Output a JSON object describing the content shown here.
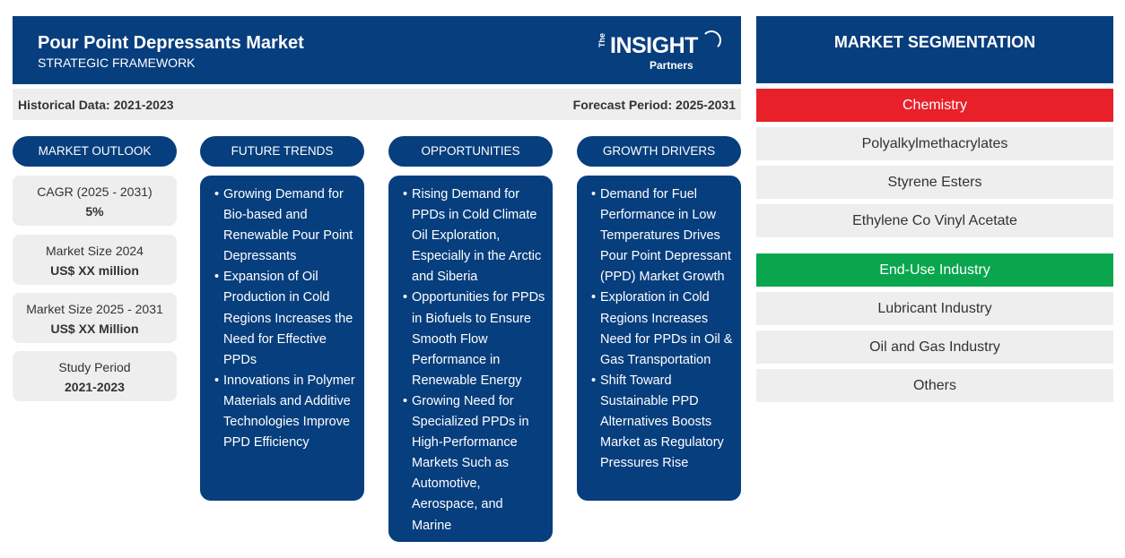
{
  "header": {
    "title": "Pour Point Depressants Market",
    "subtitle": "STRATEGIC FRAMEWORK",
    "logo": {
      "the": "The",
      "name": "INSIGHT",
      "partners": "Partners"
    }
  },
  "periods": {
    "historical": "Historical Data: 2021-2023",
    "forecast": "Forecast Period: 2025-2031"
  },
  "columns": {
    "outlook": "MARKET OUTLOOK",
    "trends": "FUTURE TRENDS",
    "opportunities": "OPPORTUNITIES",
    "drivers": "GROWTH DRIVERS"
  },
  "outlook": [
    {
      "label": "CAGR (2025 - 2031)",
      "value": "5%"
    },
    {
      "label": "Market Size 2024",
      "value": "US$ XX million"
    },
    {
      "label": "Market Size 2025 - 2031",
      "value": "US$ XX Million"
    },
    {
      "label": "Study Period",
      "value": "2021-2023"
    }
  ],
  "trends": [
    "Growing Demand for Bio-based and Renewable Pour Point Depressants",
    "Expansion of Oil Production in Cold Regions Increases the Need for Effective PPDs",
    "Innovations in Polymer Materials and Additive Technologies Improve PPD Efficiency"
  ],
  "opportunities": [
    "Rising Demand for PPDs in Cold Climate Oil Exploration, Especially in the Arctic and Siberia",
    "Opportunities for PPDs in Biofuels to Ensure Smooth Flow Performance in Renewable Energy",
    "Growing Need for Specialized PPDs in High-Performance Markets Such as Automotive, Aerospace, and Marine"
  ],
  "drivers": [
    "Demand for Fuel Performance in Low Temperatures Drives Pour Point Depressant (PPD) Market Growth",
    "Exploration in Cold Regions Increases Need for PPDs in Oil & Gas Transportation",
    "Shift Toward Sustainable PPD Alternatives Boosts Market as Regulatory Pressures Rise"
  ],
  "segmentation": {
    "title": "MARKET SEGMENTATION",
    "categories": [
      {
        "name": "Chemistry",
        "color": "#e8202a",
        "items": [
          "Polyalkylmethacrylates",
          "Styrene Esters",
          "Ethylene Co Vinyl Acetate"
        ]
      },
      {
        "name": "End-Use Industry",
        "color": "#0aa64d",
        "items": [
          "Lubricant Industry",
          "Oil and Gas Industry",
          "Others"
        ]
      }
    ]
  },
  "colors": {
    "navy": "#073e7e",
    "panel": "#eeeeee",
    "chemistry": "#e8202a",
    "end_use": "#0aa64d"
  }
}
